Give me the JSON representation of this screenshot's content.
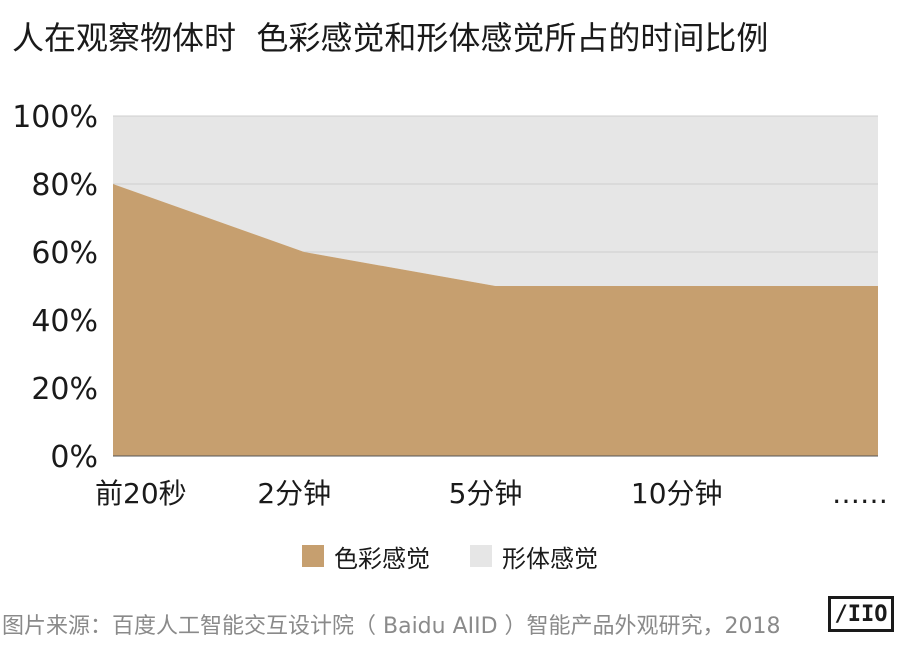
{
  "colors": {
    "color_series": "#c69f6f",
    "form_series": "#e6e6e6",
    "grid": "#cfcfcf",
    "axis": "#555555"
  },
  "chart_data": {
    "type": "area",
    "stacked": true,
    "title": "人在观察物体时  色彩感觉和形体感觉所占的时间比例",
    "categories": [
      "前20秒",
      "2分钟",
      "5分钟",
      "10分钟",
      "……"
    ],
    "y_tick_labels": [
      "0%",
      "20%",
      "40%",
      "60%",
      "80%",
      "100%"
    ],
    "ylim": [
      0,
      100
    ],
    "grid": true,
    "legend_position": "bottom",
    "series": [
      {
        "name": "色彩感觉",
        "values": [
          80,
          60,
          50,
          50,
          50
        ]
      },
      {
        "name": "形体感觉",
        "values": [
          20,
          40,
          50,
          50,
          50
        ]
      }
    ]
  },
  "source_note": "图片来源：百度人工智能交互设计院（ Baidu AIID ）智能产品外观研究，2018",
  "logo_text": "AIID"
}
